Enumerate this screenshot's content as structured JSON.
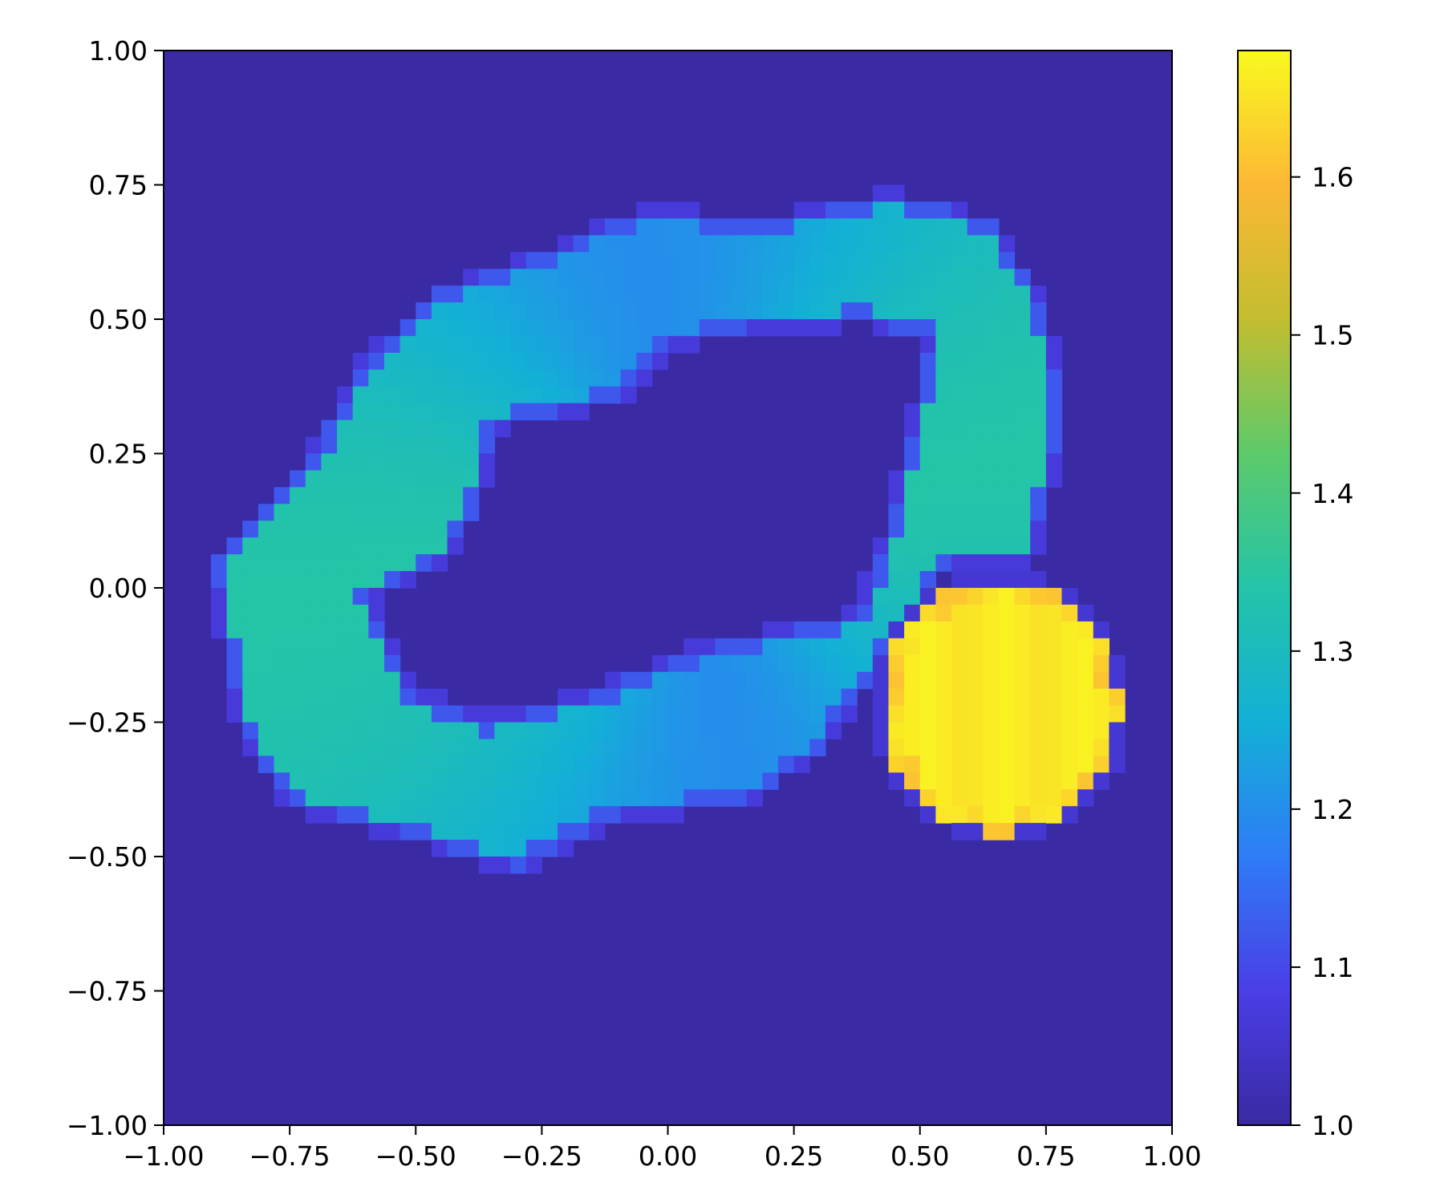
{
  "chart_data": {
    "type": "heatmap",
    "title": "",
    "xlabel": "",
    "ylabel": "",
    "xlim": [
      -1.0,
      1.0
    ],
    "ylim": [
      -1.0,
      1.0
    ],
    "grid": false,
    "x_ticks": [
      "−1.00",
      "−0.75",
      "−0.50",
      "−0.25",
      "0.00",
      "0.25",
      "0.50",
      "0.75",
      "1.00"
    ],
    "x_tick_values": [
      -1.0,
      -0.75,
      -0.5,
      -0.25,
      0.0,
      0.25,
      0.5,
      0.75,
      1.0
    ],
    "y_ticks": [
      "−1.00",
      "−0.75",
      "−0.50",
      "−0.25",
      "0.00",
      "0.25",
      "0.50",
      "0.75",
      "1.00"
    ],
    "y_tick_values": [
      -1.0,
      -0.75,
      -0.5,
      -0.25,
      0.0,
      0.25,
      0.5,
      0.75,
      1.0
    ],
    "colorbar": {
      "range": [
        1.0,
        1.68
      ],
      "ticks": [
        "1.0",
        "1.1",
        "1.2",
        "1.3",
        "1.4",
        "1.5",
        "1.6"
      ],
      "tick_values": [
        1.0,
        1.1,
        1.2,
        1.3,
        1.4,
        1.5,
        1.6
      ],
      "colormap": [
        "#3a2aa3",
        "#4a3ee6",
        "#2e7cf6",
        "#13b0d6",
        "#23c4a8",
        "#5dca6b",
        "#c3bd2f",
        "#fcb835",
        "#f9f91f"
      ]
    },
    "background_value": 1.0,
    "features": [
      {
        "kind": "ring",
        "center": [
          0.05,
          0.12
        ],
        "value_range": [
          1.2,
          1.34
        ],
        "outer_boundary": [
          [
            -0.9,
            0.05
          ],
          [
            -0.85,
            -0.25
          ],
          [
            -0.75,
            -0.4
          ],
          [
            -0.55,
            -0.45
          ],
          [
            -0.3,
            -0.52
          ],
          [
            -0.1,
            -0.42
          ],
          [
            0.15,
            -0.4
          ],
          [
            0.3,
            -0.3
          ],
          [
            0.45,
            -0.1
          ],
          [
            0.55,
            0.05
          ],
          [
            0.72,
            0.05
          ],
          [
            0.78,
            0.3
          ],
          [
            0.75,
            0.5
          ],
          [
            0.65,
            0.68
          ],
          [
            0.45,
            0.73
          ],
          [
            0.2,
            0.68
          ],
          [
            -0.05,
            0.7
          ],
          [
            -0.25,
            0.62
          ],
          [
            -0.45,
            0.55
          ],
          [
            -0.6,
            0.42
          ],
          [
            -0.7,
            0.25
          ],
          [
            -0.8,
            0.15
          ]
        ],
        "inner_boundary": [
          [
            -0.6,
            -0.02
          ],
          [
            -0.5,
            -0.2
          ],
          [
            -0.35,
            -0.25
          ],
          [
            -0.15,
            -0.2
          ],
          [
            0.05,
            -0.12
          ],
          [
            0.25,
            -0.08
          ],
          [
            0.38,
            -0.05
          ],
          [
            0.45,
            0.15
          ],
          [
            0.5,
            0.35
          ],
          [
            0.52,
            0.47
          ],
          [
            0.38,
            0.5
          ],
          [
            0.1,
            0.48
          ],
          [
            0.0,
            0.45
          ],
          [
            -0.1,
            0.35
          ],
          [
            -0.35,
            0.3
          ],
          [
            -0.38,
            0.15
          ],
          [
            -0.45,
            0.05
          ]
        ]
      },
      {
        "kind": "disk",
        "center": [
          0.66,
          -0.22
        ],
        "radius": 0.235,
        "value": 1.66
      }
    ]
  }
}
